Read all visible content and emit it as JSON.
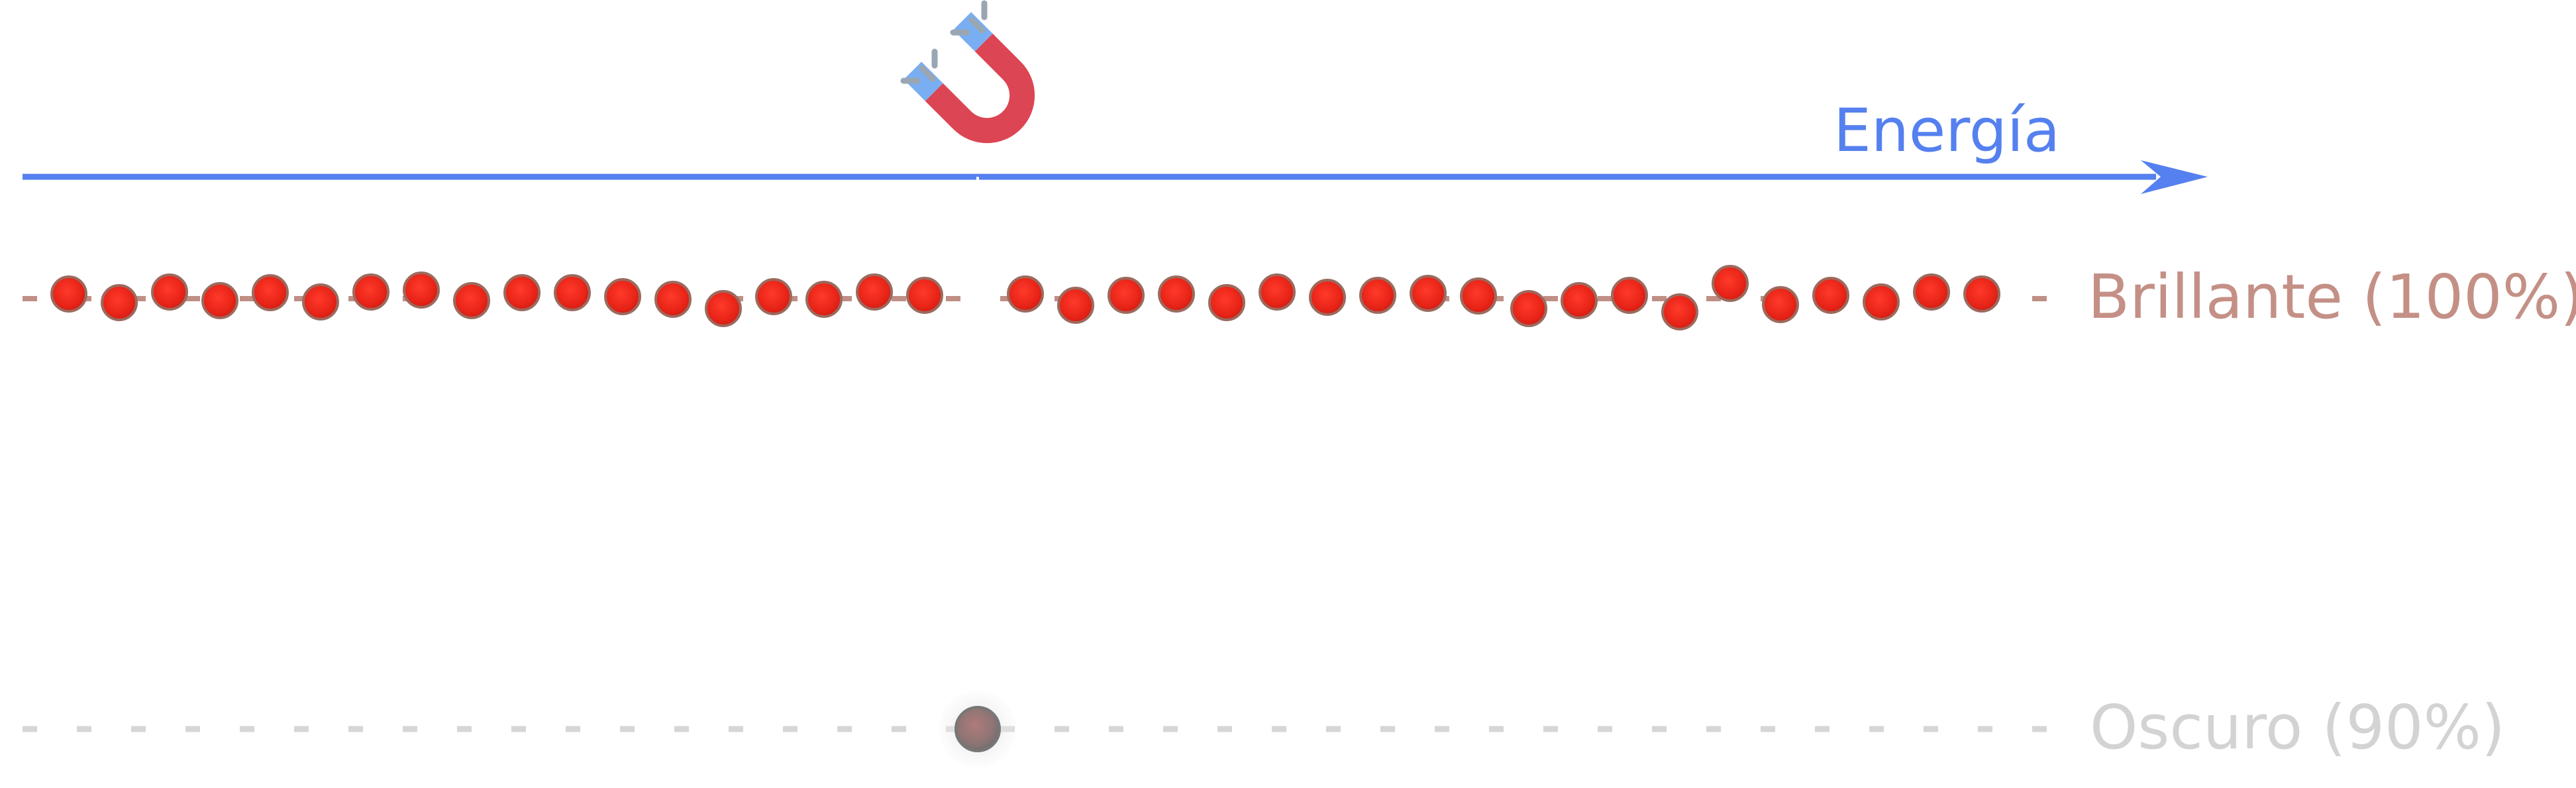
{
  "axis": {
    "label": "Energía",
    "color": "#5580ef"
  },
  "levels": {
    "bright": {
      "label": "Brillante (100%)",
      "line_color": "#bf8f86",
      "text_color": "#c49086",
      "particle_count": 38,
      "particle_color": "#e8251a"
    },
    "dark": {
      "label": "Oscuro (90%)",
      "line_color": "#d6d6d6",
      "text_color": "#d3d3d3",
      "particle_count": 1,
      "particle_color": "#888888"
    }
  },
  "icons": {
    "magnet": "magnet-icon"
  },
  "colors": {
    "magnet_red": "#dc4553",
    "magnet_tip": "#79aef2",
    "sparks": "#9aa7b2"
  }
}
